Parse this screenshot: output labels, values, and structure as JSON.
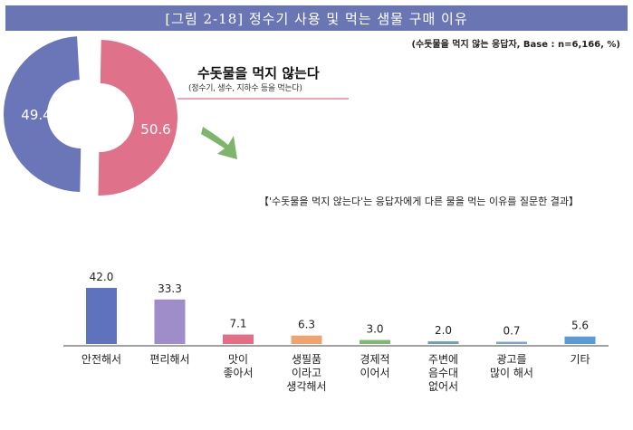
{
  "header": {
    "title": "[그림 2-18] 정수기 사용 및 먹는 샘물 구매 이유",
    "base_note": "(수돗물을 먹지 않는 응답자, Base : n=6,166, %)"
  },
  "donut": {
    "title": "수돗물을 먹지 않는다",
    "subtitle": "(정수기, 생수, 지하수 등을 먹는다)",
    "slices": [
      {
        "label": "49.4",
        "value": 49.4,
        "color": "#6a76b8"
      },
      {
        "label": "50.6",
        "value": 50.6,
        "color": "#e0718a"
      }
    ],
    "arrow_color": "#7db56c",
    "line_color": "#e0718a"
  },
  "question_text": "【'수돗물을 먹지 않는다'는 응답자에게 다른 물을 먹는 이유를 질문한 결과】",
  "chart_data": {
    "type": "bar",
    "categories": [
      "안전해서",
      "편리해서",
      "맛이\n좋아서",
      "생필품\n이라고\n생각해서",
      "경제적\n이어서",
      "주변에\n음수대\n없어서",
      "광고를\n많이 해서",
      "기타"
    ],
    "values": [
      42.0,
      33.3,
      7.1,
      6.3,
      3.0,
      2.0,
      0.7,
      5.6
    ],
    "value_labels": [
      "42.0",
      "33.3",
      "7.1",
      "6.3",
      "3.0",
      "2.0",
      "0.7",
      "5.6"
    ],
    "colors": [
      "#5f72bd",
      "#9f8dc9",
      "#e26f86",
      "#f0a46d",
      "#7fb872",
      "#6ea0b2",
      "#7fa4d4",
      "#5b9ad8"
    ],
    "ylim": [
      0,
      42.0
    ],
    "grid": false,
    "legend": "none"
  }
}
